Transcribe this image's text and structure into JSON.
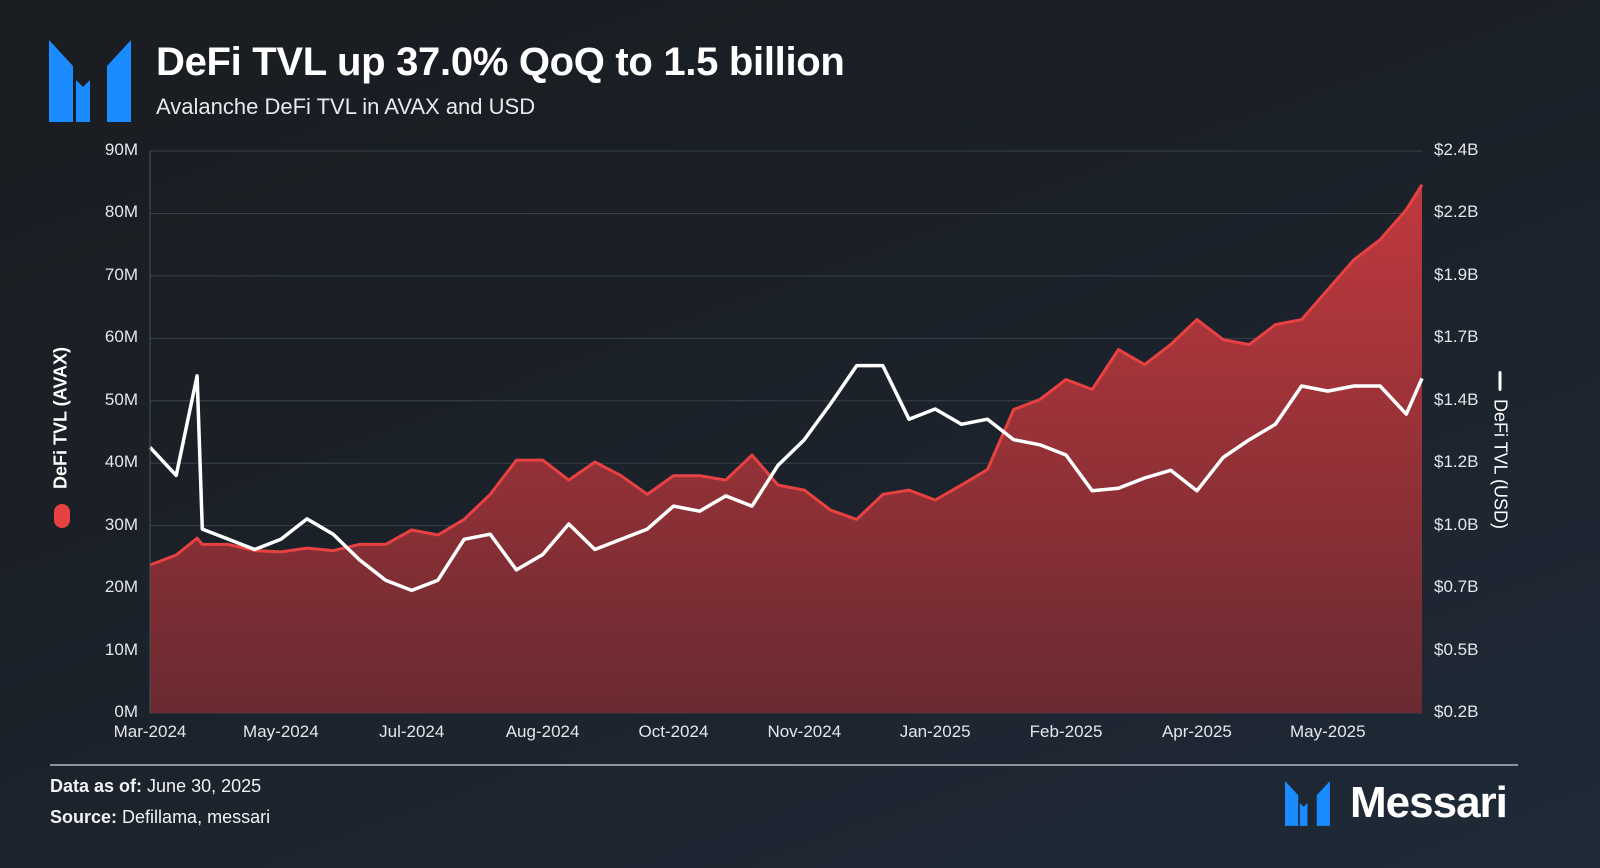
{
  "header": {
    "title": "DeFi TVL up 37.0% QoQ to 1.5 billion",
    "subtitle": "Avalanche DeFi TVL in AVAX and USD"
  },
  "colors": {
    "avax_series": "#e84142",
    "usd_series": "#ffffff",
    "brand_blue": "#1a8cff"
  },
  "chart_data": {
    "type": "area+line",
    "title": "DeFi TVL up 37.0% QoQ to 1.5 billion",
    "subtitle": "Avalanche DeFi TVL in AVAX and USD",
    "ylabel_left": "DeFi TVL (AVAX)",
    "ylabel_right": "DeFi TVL (USD)",
    "ylim_left": [
      0,
      90
    ],
    "ylim_right": [
      0.2,
      2.4
    ],
    "grid": true,
    "yticks_left": [
      "0M",
      "10M",
      "20M",
      "30M",
      "40M",
      "50M",
      "60M",
      "70M",
      "80M",
      "90M"
    ],
    "yticks_right": [
      "$0.2B",
      "$0.5B",
      "$0.7B",
      "$1.0B",
      "$1.2B",
      "$1.4B",
      "$1.7B",
      "$1.9B",
      "$2.2B",
      "$2.4B"
    ],
    "xticks": [
      "Mar-2024",
      "May-2024",
      "Jul-2024",
      "Aug-2024",
      "Oct-2024",
      "Nov-2024",
      "Jan-2025",
      "Feb-2025",
      "Apr-2025",
      "May-2025"
    ],
    "x": [
      "2024-03-01",
      "2024-03-11",
      "2024-03-19",
      "2024-03-21",
      "2024-03-31",
      "2024-04-10",
      "2024-04-20",
      "2024-04-30",
      "2024-05-10",
      "2024-05-20",
      "2024-05-30",
      "2024-06-09",
      "2024-06-19",
      "2024-06-29",
      "2024-07-09",
      "2024-07-19",
      "2024-07-29",
      "2024-08-08",
      "2024-08-18",
      "2024-08-28",
      "2024-09-07",
      "2024-09-17",
      "2024-09-27",
      "2024-10-07",
      "2024-10-17",
      "2024-10-27",
      "2024-11-06",
      "2024-11-16",
      "2024-11-26",
      "2024-12-06",
      "2024-12-16",
      "2024-12-26",
      "2025-01-05",
      "2025-01-15",
      "2025-01-25",
      "2025-02-04",
      "2025-02-14",
      "2025-02-24",
      "2025-03-06",
      "2025-03-16",
      "2025-03-26",
      "2025-04-05",
      "2025-04-15",
      "2025-04-25",
      "2025-05-05",
      "2025-05-15",
      "2025-05-25",
      "2025-06-04",
      "2025-06-14",
      "2025-06-24",
      "2025-06-30"
    ],
    "series": [
      {
        "name": "DeFi TVL (AVAX)",
        "unit": "M AVAX",
        "type": "area",
        "axis": "left",
        "values": [
          23.7,
          25.3,
          28.0,
          27.0,
          27.0,
          26.0,
          25.8,
          26.4,
          26.0,
          27.0,
          27.0,
          29.3,
          28.5,
          31.0,
          35.0,
          40.5,
          40.5,
          37.3,
          40.2,
          38.0,
          35.0,
          38.0,
          38.0,
          37.3,
          41.3,
          36.5,
          35.7,
          32.5,
          31.0,
          35.0,
          35.7,
          34.1,
          36.5,
          39.0,
          48.6,
          50.2,
          53.4,
          51.8,
          58.2,
          55.8,
          59.0,
          63.0,
          59.8,
          59.0,
          62.2,
          63.0,
          67.8,
          72.6,
          75.8,
          80.6,
          84.6
        ]
      },
      {
        "name": "DeFi TVL (USD)",
        "unit": "B USD",
        "type": "line",
        "axis": "right",
        "values": [
          1.24,
          1.13,
          1.52,
          0.92,
          0.88,
          0.84,
          0.88,
          0.96,
          0.9,
          0.8,
          0.72,
          0.68,
          0.72,
          0.88,
          0.9,
          0.76,
          0.82,
          0.94,
          0.84,
          0.88,
          0.92,
          1.01,
          0.99,
          1.05,
          1.01,
          1.17,
          1.27,
          1.41,
          1.56,
          1.56,
          1.35,
          1.39,
          1.33,
          1.35,
          1.27,
          1.25,
          1.21,
          1.07,
          1.08,
          1.12,
          1.15,
          1.07,
          1.2,
          1.27,
          1.33,
          1.48,
          1.46,
          1.48,
          1.48,
          1.37,
          1.51
        ]
      }
    ]
  },
  "footer": {
    "data_as_of_label": "Data as of:",
    "data_as_of_value": "June 30, 2025",
    "source_label": "Source:",
    "source_value": "Defillama, messari",
    "brand": "Messari"
  }
}
